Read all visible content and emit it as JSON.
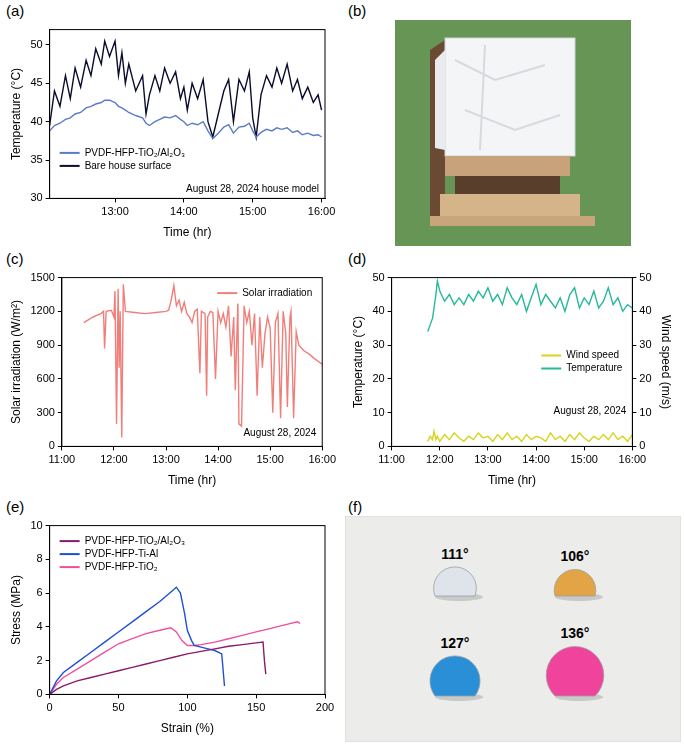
{
  "chart_data": [
    {
      "panel": "(a)",
      "type": "line",
      "x_label": "Time (hr)",
      "y_label": "Temperature (°C)",
      "xlim": [
        12.05,
        16.05
      ],
      "xticks": [
        {
          "value": 13,
          "label": "13:00"
        },
        {
          "value": 14,
          "label": "14:00"
        },
        {
          "value": 15,
          "label": "15:00"
        },
        {
          "value": 16,
          "label": "16:00"
        }
      ],
      "ylim": [
        30,
        52
      ],
      "yticks": [
        30,
        35,
        40,
        45,
        50
      ],
      "grid": false,
      "legend": "lower left",
      "annotations": [
        "August 28, 2024 house model"
      ],
      "x": [
        12.05,
        12.12,
        12.2,
        12.28,
        12.35,
        12.42,
        12.5,
        12.58,
        12.65,
        12.72,
        12.8,
        12.85,
        12.92,
        13.0,
        13.05,
        13.1,
        13.15,
        13.2,
        13.3,
        13.4,
        13.45,
        13.5,
        13.58,
        13.65,
        13.72,
        13.8,
        13.88,
        13.95,
        14.0,
        14.05,
        14.12,
        14.2,
        14.28,
        14.35,
        14.42,
        14.5,
        14.58,
        14.65,
        14.72,
        14.8,
        14.88,
        14.95,
        15.0,
        15.05,
        15.12,
        15.2,
        15.28,
        15.35,
        15.42,
        15.5,
        15.58,
        15.65,
        15.72,
        15.8,
        15.88,
        15.95,
        16.0
      ],
      "series": [
        {
          "name": "PVDF-HFP-TiO₂/Al₂O₃",
          "color": "#5b7cc4",
          "values": [
            38.8,
            39.5,
            39.8,
            40.3,
            40.5,
            41,
            41.2,
            41.8,
            42,
            42.3,
            42.5,
            42.8,
            42.8,
            42.5,
            42,
            41.8,
            41.5,
            41.2,
            40.8,
            40.5,
            39.8,
            39.5,
            40,
            40.3,
            40.6,
            40.5,
            40.8,
            40.3,
            40,
            39.5,
            39.8,
            39.6,
            40,
            38.8,
            37.8,
            38.5,
            39.3,
            39.6,
            38.5,
            39.3,
            39.4,
            39.8,
            38.8,
            38,
            38.6,
            39,
            38.8,
            39.2,
            39,
            39.2,
            38.6,
            38.8,
            38.3,
            38.5,
            38.2,
            38.3,
            38
          ]
        },
        {
          "name": "Bare house surface",
          "color": "#0b0b2e",
          "values": [
            39.5,
            44,
            42,
            46,
            43,
            47,
            44.5,
            48,
            46,
            49.5,
            47.5,
            50.5,
            48.5,
            50.5,
            46,
            49,
            45,
            47.5,
            44,
            46,
            41,
            43.5,
            46,
            44,
            47,
            45,
            46.5,
            43,
            44.5,
            41.5,
            45,
            43,
            45.5,
            40,
            38,
            41,
            44,
            45.5,
            40,
            45.5,
            44,
            46.5,
            40.5,
            38,
            43.5,
            46,
            44.5,
            47,
            45,
            47.5,
            44,
            45.5,
            43,
            44.5,
            42.5,
            43.5,
            41.5
          ]
        }
      ]
    },
    {
      "panel": "(c)",
      "type": "line",
      "x_label": "Time (hr)",
      "y_label": "Solar irradiation (W/m²)",
      "xlim": [
        11,
        16
      ],
      "xticks": [
        {
          "value": 11,
          "label": "11:00"
        },
        {
          "value": 12,
          "label": "12:00"
        },
        {
          "value": 13,
          "label": "13:00"
        },
        {
          "value": 14,
          "label": "14:00"
        },
        {
          "value": 15,
          "label": "15:00"
        },
        {
          "value": 16,
          "label": "16:00"
        }
      ],
      "ylim": [
        0,
        1500
      ],
      "yticks": [
        0,
        300,
        600,
        900,
        1200,
        1500
      ],
      "grid": false,
      "legend": "upper right",
      "annotations": [
        "August 28, 2024"
      ],
      "x": [
        11.42,
        11.6,
        11.75,
        11.8,
        11.82,
        11.85,
        11.95,
        12.0,
        12.02,
        12.05,
        12.08,
        12.1,
        12.12,
        12.15,
        12.18,
        12.22,
        12.4,
        12.6,
        12.8,
        13.0,
        13.05,
        13.1,
        13.15,
        13.2,
        13.25,
        13.3,
        13.35,
        13.4,
        13.45,
        13.5,
        13.55,
        13.6,
        13.65,
        13.68,
        13.75,
        13.78,
        13.8,
        13.85,
        13.9,
        13.95,
        14.0,
        14.05,
        14.1,
        14.15,
        14.2,
        14.25,
        14.3,
        14.33,
        14.38,
        14.4,
        14.45,
        14.5,
        14.55,
        14.6,
        14.65,
        14.7,
        14.75,
        14.8,
        14.85,
        14.9,
        14.95,
        15.0,
        15.05,
        15.1,
        15.15,
        15.2,
        15.25,
        15.3,
        15.33,
        15.38,
        15.4,
        15.45,
        15.5,
        15.55,
        15.65,
        15.75,
        15.85,
        16.0
      ],
      "series": [
        {
          "name": "Solar irradiation",
          "color": "#f07f7a",
          "values": [
            1100,
            1150,
            1180,
            1200,
            870,
            1200,
            1210,
            1150,
            1380,
            200,
            1400,
            700,
            1200,
            80,
            1440,
            1200,
            1190,
            1180,
            1190,
            1200,
            1210,
            1300,
            1430,
            1250,
            1300,
            1200,
            1280,
            1180,
            1150,
            1100,
            1200,
            1220,
            650,
            1200,
            1180,
            450,
            1150,
            1200,
            1190,
            600,
            1200,
            1100,
            1180,
            1060,
            1250,
            800,
            1150,
            500,
            1300,
            200,
            180,
            1250,
            1100,
            1200,
            900,
            1180,
            450,
            1150,
            700,
            1000,
            1150,
            1050,
            300,
            1100,
            1180,
            250,
            1200,
            1000,
            350,
            1150,
            1200,
            250,
            1020,
            900,
            850,
            820,
            780,
            730
          ]
        }
      ]
    },
    {
      "panel": "(d)",
      "type": "line",
      "x_label": "Time (hr)",
      "y_label": "Temperature (°C)",
      "y2_label": "Wind speed (m/s)",
      "xlim": [
        11,
        16
      ],
      "xticks": [
        {
          "value": 11,
          "label": "11:00"
        },
        {
          "value": 12,
          "label": "12:00"
        },
        {
          "value": 13,
          "label": "13:00"
        },
        {
          "value": 14,
          "label": "14:00"
        },
        {
          "value": 15,
          "label": "15:00"
        },
        {
          "value": 16,
          "label": "16:00"
        }
      ],
      "ylim": [
        0,
        50
      ],
      "yticks": [
        0,
        10,
        20,
        30,
        40,
        50
      ],
      "y2lim": [
        0,
        50
      ],
      "y2ticks": [
        0,
        10,
        20,
        30,
        40,
        50
      ],
      "grid": false,
      "legend": "right",
      "annotations": [
        "August 28, 2024"
      ],
      "x": [
        11.75,
        11.8,
        11.85,
        11.88,
        11.92,
        11.95,
        12.0,
        12.1,
        12.2,
        12.3,
        12.4,
        12.5,
        12.6,
        12.7,
        12.8,
        12.9,
        13.0,
        13.1,
        13.2,
        13.3,
        13.4,
        13.5,
        13.6,
        13.7,
        13.8,
        13.9,
        14.0,
        14.1,
        14.2,
        14.3,
        14.4,
        14.5,
        14.6,
        14.7,
        14.8,
        14.9,
        15.0,
        15.1,
        15.2,
        15.3,
        15.4,
        15.5,
        15.6,
        15.7,
        15.8,
        15.9,
        16.0
      ],
      "series": [
        {
          "name": "Wind speed",
          "color": "#d6d41c",
          "axis": "y2",
          "values": [
            1.5,
            3,
            2,
            4.5,
            2,
            3,
            1.5,
            3.5,
            2,
            4,
            2.5,
            1.5,
            3,
            2,
            4,
            2.5,
            3,
            1.5,
            3.5,
            2,
            4,
            2,
            3,
            1.5,
            3.5,
            2,
            3,
            2.5,
            1.5,
            4,
            2,
            3,
            1.5,
            3.5,
            2,
            4,
            2.5,
            1.5,
            3,
            2,
            3.5,
            2,
            4,
            2,
            3,
            1.5,
            3.5
          ]
        },
        {
          "name": "Temperature",
          "color": "#27b89b",
          "values": [
            34,
            36,
            38,
            41,
            45,
            49,
            46,
            43,
            45,
            42,
            44,
            42,
            45,
            43,
            46,
            44,
            47,
            43,
            45,
            42,
            47,
            44,
            42,
            45,
            40,
            44,
            48,
            42,
            45,
            43,
            41,
            44,
            40,
            45,
            47,
            41,
            44,
            42,
            46,
            41,
            43,
            47,
            42,
            44,
            40,
            42,
            41
          ]
        }
      ]
    },
    {
      "panel": "(e)",
      "type": "line",
      "x_label": "Strain (%)",
      "y_label": "Stress (MPa)",
      "xlim": [
        0,
        200
      ],
      "xticks": [
        0,
        50,
        100,
        150,
        200
      ],
      "ylim": [
        0,
        10
      ],
      "yticks": [
        0,
        2,
        4,
        6,
        8,
        10
      ],
      "grid": false,
      "legend": "upper left",
      "series": [
        {
          "name": "PVDF-HFP-TiO₂/Al₂O₃",
          "color": "#8a1a6a",
          "x": [
            0,
            5,
            10,
            20,
            30,
            40,
            50,
            60,
            70,
            80,
            90,
            100,
            110,
            120,
            130,
            140,
            150,
            155,
            156,
            157
          ],
          "values": [
            0,
            0.3,
            0.5,
            0.8,
            1.0,
            1.2,
            1.4,
            1.6,
            1.8,
            2.0,
            2.2,
            2.4,
            2.55,
            2.7,
            2.85,
            2.95,
            3.05,
            3.1,
            2.0,
            1.2
          ]
        },
        {
          "name": "PVDF-HFP-Ti-Al",
          "color": "#1f4fd8",
          "x": [
            0,
            5,
            10,
            20,
            30,
            40,
            50,
            60,
            70,
            80,
            90,
            92,
            95,
            98,
            100,
            103,
            105,
            110,
            115,
            120,
            125,
            127
          ],
          "values": [
            0,
            0.8,
            1.3,
            1.9,
            2.5,
            3.1,
            3.7,
            4.3,
            4.9,
            5.5,
            6.2,
            6.35,
            6.0,
            4.8,
            3.8,
            3.2,
            2.9,
            2.8,
            2.7,
            2.6,
            2.4,
            0.5
          ]
        },
        {
          "name": "PVDF-HFP-TiO₂",
          "color": "#f0509a",
          "x": [
            0,
            5,
            10,
            20,
            30,
            40,
            50,
            60,
            70,
            80,
            88,
            92,
            96,
            100,
            105,
            110,
            120,
            130,
            140,
            150,
            160,
            170,
            180,
            182
          ],
          "values": [
            0,
            0.6,
            1.0,
            1.5,
            2.0,
            2.5,
            3.0,
            3.3,
            3.6,
            3.8,
            3.95,
            3.7,
            3.2,
            2.9,
            2.9,
            2.95,
            3.1,
            3.3,
            3.5,
            3.7,
            3.9,
            4.1,
            4.3,
            4.2
          ]
        }
      ]
    }
  ],
  "photos": [
    {
      "panel": "(b)"
    },
    {
      "panel": "(f)",
      "droplets": [
        {
          "value": 111,
          "label": "111°",
          "color": "#dfe4ea"
        },
        {
          "value": 106,
          "label": "106°",
          "color": "#e2a445"
        },
        {
          "value": 127,
          "label": "127°",
          "color": "#2a8fd6"
        },
        {
          "value": 136,
          "label": "136°",
          "color": "#f0449c"
        }
      ]
    }
  ]
}
